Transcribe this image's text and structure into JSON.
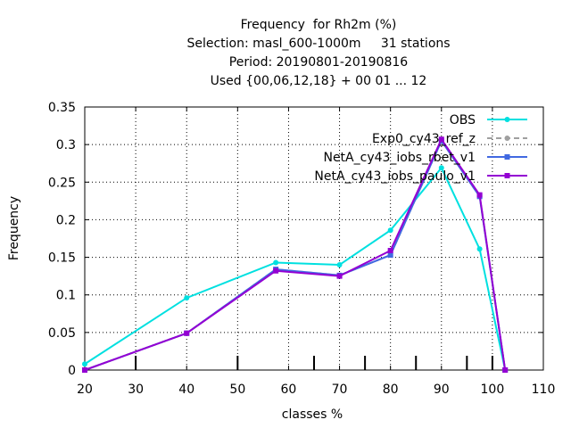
{
  "chart_data": {
    "type": "line",
    "title": [
      "Frequency  for Rh2m (%)",
      "Selection: masl_600-1000m     31 stations",
      "Period: 20190801-20190816",
      "Used {00,06,12,18} + 00 01 ... 12"
    ],
    "xlabel": "classes %",
    "ylabel": "Frequency",
    "xlim": [
      20,
      110
    ],
    "ylim": [
      0,
      0.35
    ],
    "x_ticks": [
      20,
      30,
      40,
      50,
      60,
      70,
      80,
      90,
      100,
      110
    ],
    "y_ticks": [
      0,
      0.05,
      0.1,
      0.15,
      0.2,
      0.25,
      0.3,
      0.35
    ],
    "x_tick_labels": [
      "20",
      "30",
      "40",
      "50",
      "60",
      "70",
      "80",
      "90",
      "100",
      "110"
    ],
    "y_tick_labels": [
      "0",
      "0.05",
      "0.1",
      "0.15",
      "0.2",
      "0.25",
      "0.3",
      "0.35"
    ],
    "class_marks": [
      30,
      50,
      65,
      75,
      85,
      95,
      100
    ],
    "grid": true,
    "legend_position": "top-right",
    "x": [
      20,
      40,
      57.5,
      70,
      80,
      90,
      97.5,
      102.5
    ],
    "series": [
      {
        "name": "OBS",
        "color": "#00e0e0",
        "style": "solid",
        "marker": "circle",
        "values": [
          0.008,
          0.096,
          0.143,
          0.14,
          0.186,
          0.269,
          0.161,
          0.0
        ]
      },
      {
        "name": "Exp0_cy43_ref_z",
        "color": "#a0a0a0",
        "style": "dashed",
        "marker": "circle",
        "values": [
          0.0,
          0.049,
          0.134,
          0.126,
          0.153,
          0.305,
          0.231,
          0.0
        ]
      },
      {
        "name": "NetA_cy43_iobs_rbet_v1",
        "color": "#4169e1",
        "style": "solid",
        "marker": "square",
        "values": [
          0.0,
          0.049,
          0.134,
          0.126,
          0.153,
          0.305,
          0.231,
          0.0
        ]
      },
      {
        "name": "NetA_cy43_iobs_paulo_v1",
        "color": "#9400d3",
        "style": "solid",
        "marker": "square",
        "values": [
          0.0,
          0.049,
          0.132,
          0.125,
          0.159,
          0.307,
          0.233,
          0.0
        ]
      }
    ]
  }
}
